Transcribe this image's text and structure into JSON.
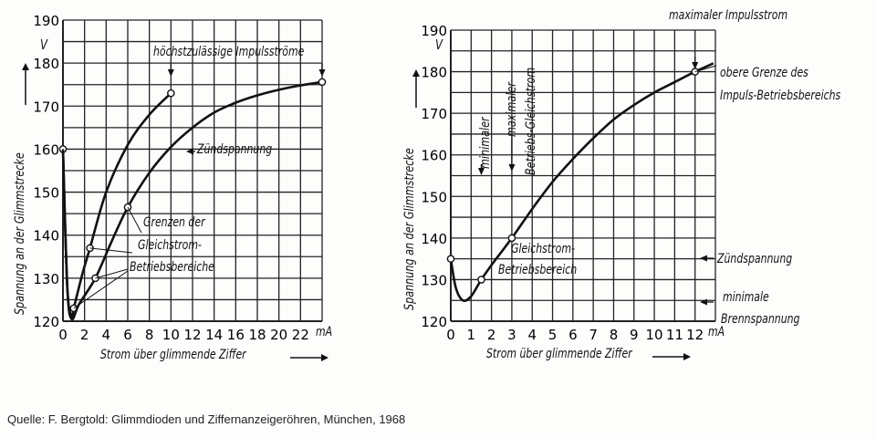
{
  "chart_data": [
    {
      "type": "line",
      "xlabel": "Strom über glimmende Ziffer",
      "ylabel": "Spannung an der Glimmstrecke",
      "x_unit": "mA",
      "y_unit": "V",
      "xlim": [
        0,
        24
      ],
      "ylim": [
        120,
        190
      ],
      "x_ticks": [
        "0",
        "2",
        "4",
        "6",
        "8",
        "10",
        "12",
        "14",
        "16",
        "18",
        "20",
        "22"
      ],
      "y_ticks": [
        "120",
        "130",
        "140",
        "150",
        "160",
        "170",
        "180",
        "190"
      ],
      "grid": true,
      "series": [
        {
          "x": [
            0,
            0.4,
            0.8,
            1,
            1.8,
            2.5,
            4,
            6,
            8,
            10
          ],
          "y": [
            160,
            128,
            121,
            123,
            131,
            137,
            150,
            161,
            168,
            173
          ],
          "markers": [
            [
              0,
              160
            ],
            [
              1,
              123
            ],
            [
              2.5,
              137
            ],
            [
              10,
              173
            ]
          ]
        },
        {
          "x": [
            0,
            0.4,
            0.8,
            1.5,
            3,
            4.5,
            6,
            8,
            10,
            12,
            14,
            16,
            18,
            20,
            22,
            24
          ],
          "y": [
            160,
            128,
            120.5,
            124,
            130,
            138.5,
            146.5,
            154.5,
            160.5,
            165,
            168.5,
            170.8,
            172.5,
            173.8,
            174.8,
            175.6
          ],
          "markers": [
            [
              3,
              130
            ],
            [
              6,
              146.5
            ],
            [
              24,
              175.6
            ]
          ],
          "name": "Zündspannung"
        }
      ],
      "annotations": {
        "top": "höchstzulässige Impulsströme",
        "zuend": "Zündspannung",
        "grenzen1": "Grenzen der",
        "grenzen2": "Gleichstrom-",
        "grenzen3": "Betriebsbereiche"
      }
    },
    {
      "type": "line",
      "xlabel": "Strom über glimmende Ziffer",
      "ylabel": "Spannung an der Glimmstrecke",
      "x_unit": "mA",
      "y_unit": "V",
      "xlim": [
        0,
        13
      ],
      "ylim": [
        120,
        190
      ],
      "x_ticks": [
        "0",
        "1",
        "2",
        "3",
        "4",
        "5",
        "6",
        "7",
        "8",
        "9",
        "10",
        "11",
        "12"
      ],
      "y_ticks": [
        "120",
        "130",
        "140",
        "150",
        "160",
        "170",
        "180",
        "190"
      ],
      "grid": true,
      "series": [
        {
          "x": [
            0,
            0.25,
            0.6,
            1,
            1.5,
            2,
            3,
            4,
            5,
            6,
            7,
            8,
            9,
            10,
            11,
            12,
            12.9
          ],
          "y": [
            135,
            128,
            125,
            126,
            130,
            133.5,
            140,
            147,
            153.5,
            159,
            164,
            168.5,
            172,
            175,
            177.5,
            180,
            182
          ],
          "markers": [
            [
              0,
              135
            ],
            [
              1.5,
              130
            ],
            [
              3,
              140
            ],
            [
              12,
              180
            ]
          ]
        }
      ],
      "reference_levels": {
        "Zündspannung": 134.5,
        "minimale Brennspannung": 125
      },
      "annotations": {
        "top": "maximaler Impulsstrom",
        "obere1": "obere Grenze des",
        "obere2": "Impuls-Betriebsbereichs",
        "minimaler": "minimaler",
        "maximaler": "maximaler-",
        "betriebs": "Betriebs-Gleichstrom",
        "gleich1": "Gleichstrom-",
        "gleich2": "Betriebsbereich",
        "zuend": "Zündspannung",
        "minimale": "minimale",
        "brenn": "Brennspannung"
      }
    }
  ],
  "source": "Quelle: F. Bergtold: Glimmdioden und Ziffernanzeigeröhren, München, 1968"
}
